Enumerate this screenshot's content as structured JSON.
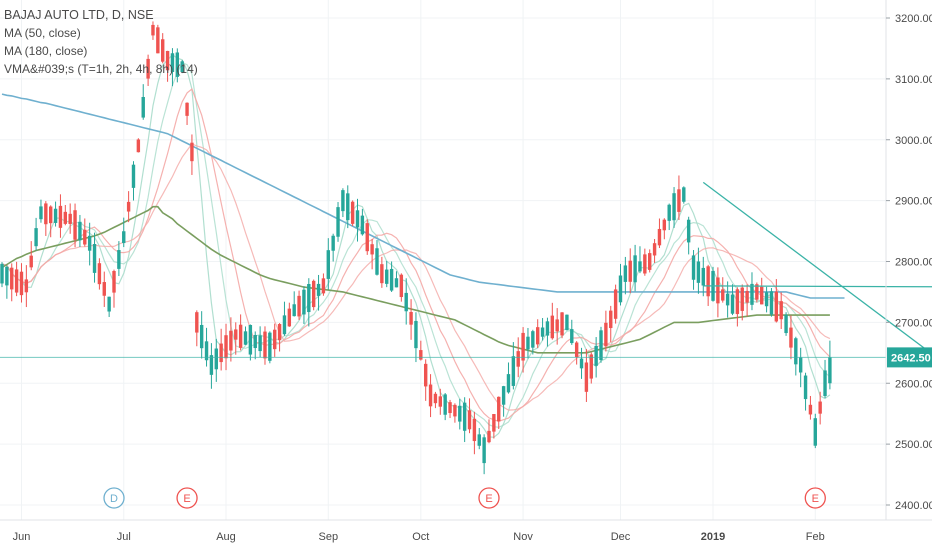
{
  "legend": {
    "title": "BAJAJ AUTO LTD, D, NSE",
    "line1": "MA (50, close)",
    "line2": "MA (180, close)",
    "line3": "VMA&#039;s (T=1h, 2h, 4h, 8h) (14)"
  },
  "price_tag": "2642.50",
  "colors": {
    "up": "#26a69a",
    "down": "#ef5350",
    "ma50": "#7a9e5f",
    "ma180": "#6fb0cf",
    "vma": "#f4a9a6",
    "vma_fast": "#a9dccb",
    "trendline": "#3bb3a7",
    "tag_bg": "#26a69a",
    "grid": "#f0f3f5"
  },
  "events": [
    {
      "label": "D",
      "date_index": 23,
      "color": "#6fb0cf"
    },
    {
      "label": "E",
      "date_index": 38,
      "color": "#ef5350"
    },
    {
      "label": "E",
      "date_index": 100,
      "color": "#ef5350"
    },
    {
      "label": "E",
      "date_index": 167,
      "color": "#ef5350"
    }
  ],
  "chart_data": {
    "type": "candlestick",
    "title": "BAJAJ AUTO LTD, D, NSE",
    "x_ticks": [
      "Jun",
      "Jul",
      "Aug",
      "Sep",
      "Oct",
      "Nov",
      "Dec",
      "2019",
      "Feb"
    ],
    "y_ticks": [
      2400,
      2500,
      2600,
      2700,
      2800,
      2900,
      3000,
      3100,
      3200
    ],
    "ylim": [
      2380,
      3210
    ],
    "last_price": 2642.5,
    "series": [
      {
        "name": "MA (50, close)",
        "values": [
          2790,
          2795,
          2800,
          2805,
          2808,
          2812,
          2815,
          2818,
          2820,
          2822,
          2824,
          2826,
          2828,
          2830,
          2832,
          2834,
          2836,
          2838,
          2840,
          2842,
          2845,
          2848,
          2852,
          2856,
          2860,
          2864,
          2868,
          2872,
          2876,
          2880,
          2884,
          2890,
          2890,
          2880,
          2875,
          2870,
          2862,
          2856,
          2850,
          2844,
          2838,
          2832,
          2826,
          2820,
          2815,
          2810,
          2806,
          2802,
          2798,
          2794,
          2790,
          2786,
          2782,
          2778,
          2775,
          2772,
          2770,
          2768,
          2766,
          2764,
          2762,
          2760,
          2758,
          2757,
          2756,
          2755,
          2754,
          2753,
          2752,
          2751,
          2750,
          2748,
          2746,
          2744,
          2742,
          2740,
          2738,
          2736,
          2734,
          2732,
          2730,
          2728,
          2726,
          2724,
          2722,
          2720,
          2718,
          2716,
          2714,
          2712,
          2710,
          2708,
          2706,
          2704,
          2700,
          2696,
          2692,
          2688,
          2684,
          2680,
          2676,
          2672,
          2668,
          2665,
          2662,
          2660,
          2658,
          2656,
          2654,
          2652,
          2650,
          2650,
          2650,
          2650,
          2650,
          2650,
          2650,
          2650,
          2650,
          2650,
          2650,
          2652,
          2654,
          2656,
          2658,
          2660,
          2662,
          2664,
          2666,
          2668,
          2670,
          2672,
          2676,
          2680,
          2684,
          2688,
          2692,
          2696,
          2700,
          2700,
          2700,
          2700,
          2700,
          2700,
          2701,
          2702,
          2703,
          2704,
          2705,
          2706,
          2707,
          2708,
          2709,
          2710,
          2711,
          2712,
          2712,
          2712,
          2712,
          2712,
          2712,
          2712,
          2712,
          2712,
          2712,
          2712,
          2712,
          2712,
          2712,
          2712,
          2712
        ]
      },
      {
        "name": "MA (180, close)",
        "values": [
          3075,
          3073,
          3072,
          3070,
          3068,
          3067,
          3065,
          3063,
          3061,
          3060,
          3058,
          3056,
          3054,
          3052,
          3050,
          3048,
          3046,
          3044,
          3042,
          3040,
          3038,
          3036,
          3034,
          3032,
          3030,
          3028,
          3026,
          3024,
          3022,
          3020,
          3018,
          3016,
          3014,
          3012,
          3010,
          3006,
          3002,
          2998,
          2994,
          2990,
          2986,
          2982,
          2978,
          2974,
          2970,
          2966,
          2962,
          2958,
          2954,
          2950,
          2946,
          2942,
          2938,
          2934,
          2930,
          2926,
          2922,
          2918,
          2914,
          2910,
          2906,
          2902,
          2898,
          2894,
          2890,
          2886,
          2882,
          2878,
          2874,
          2870,
          2866,
          2862,
          2858,
          2854,
          2850,
          2846,
          2842,
          2838,
          2834,
          2830,
          2826,
          2822,
          2818,
          2814,
          2810,
          2806,
          2802,
          2798,
          2794,
          2790,
          2786,
          2782,
          2778,
          2776,
          2774,
          2772,
          2770,
          2768,
          2766,
          2765,
          2764,
          2763,
          2762,
          2761,
          2760,
          2759,
          2758,
          2757,
          2756,
          2755,
          2754,
          2753,
          2752,
          2751,
          2750,
          2750,
          2750,
          2750,
          2750,
          2750,
          2750,
          2750,
          2750,
          2750,
          2750,
          2750,
          2750,
          2750,
          2750,
          2750,
          2750,
          2750,
          2750,
          2750,
          2750,
          2750,
          2750,
          2750,
          2750,
          2750,
          2750,
          2750,
          2750,
          2750,
          2750,
          2750,
          2750,
          2750,
          2750,
          2750,
          2750,
          2750,
          2750,
          2750,
          2750,
          2750,
          2750,
          2750,
          2750,
          2750,
          2750,
          2750,
          2748,
          2746,
          2744,
          2742,
          2740,
          2740,
          2740,
          2740,
          2740,
          2740,
          2740,
          2740
        ]
      }
    ],
    "trendlines": [
      {
        "name": "horizontal",
        "from": [
          144,
          2760
        ],
        "to": [
          205,
          2758
        ]
      },
      {
        "name": "falling",
        "from": [
          144,
          2930
        ],
        "to": [
          199,
          2600
        ]
      }
    ]
  }
}
